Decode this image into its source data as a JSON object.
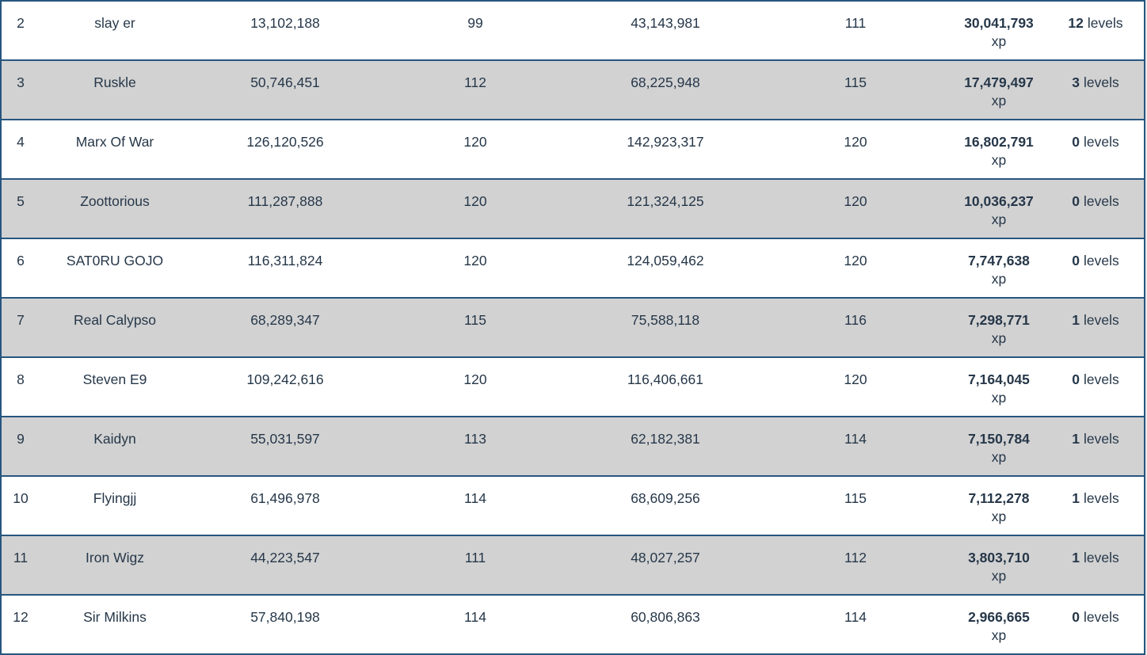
{
  "table": {
    "units": {
      "xp": "xp",
      "levels": "levels"
    },
    "rows": [
      {
        "rank": "2",
        "name": "slay er",
        "start_xp": "13,102,188",
        "start_level": "99",
        "end_xp": "43,143,981",
        "end_level": "111",
        "gained_xp": "30,041,793",
        "gained_levels": "12"
      },
      {
        "rank": "3",
        "name": "Ruskle",
        "start_xp": "50,746,451",
        "start_level": "112",
        "end_xp": "68,225,948",
        "end_level": "115",
        "gained_xp": "17,479,497",
        "gained_levels": "3"
      },
      {
        "rank": "4",
        "name": "Marx Of War",
        "start_xp": "126,120,526",
        "start_level": "120",
        "end_xp": "142,923,317",
        "end_level": "120",
        "gained_xp": "16,802,791",
        "gained_levels": "0"
      },
      {
        "rank": "5",
        "name": "Zoottorious",
        "start_xp": "111,287,888",
        "start_level": "120",
        "end_xp": "121,324,125",
        "end_level": "120",
        "gained_xp": "10,036,237",
        "gained_levels": "0"
      },
      {
        "rank": "6",
        "name": "SAT0RU GOJO",
        "start_xp": "116,311,824",
        "start_level": "120",
        "end_xp": "124,059,462",
        "end_level": "120",
        "gained_xp": "7,747,638",
        "gained_levels": "0"
      },
      {
        "rank": "7",
        "name": "Real Calypso",
        "start_xp": "68,289,347",
        "start_level": "115",
        "end_xp": "75,588,118",
        "end_level": "116",
        "gained_xp": "7,298,771",
        "gained_levels": "1"
      },
      {
        "rank": "8",
        "name": "Steven E9",
        "start_xp": "109,242,616",
        "start_level": "120",
        "end_xp": "116,406,661",
        "end_level": "120",
        "gained_xp": "7,164,045",
        "gained_levels": "0"
      },
      {
        "rank": "9",
        "name": "Kaidyn",
        "start_xp": "55,031,597",
        "start_level": "113",
        "end_xp": "62,182,381",
        "end_level": "114",
        "gained_xp": "7,150,784",
        "gained_levels": "1"
      },
      {
        "rank": "10",
        "name": "Flyingjj",
        "start_xp": "61,496,978",
        "start_level": "114",
        "end_xp": "68,609,256",
        "end_level": "115",
        "gained_xp": "7,112,278",
        "gained_levels": "1"
      },
      {
        "rank": "11",
        "name": "Iron Wigz",
        "start_xp": "44,223,547",
        "start_level": "111",
        "end_xp": "48,027,257",
        "end_level": "112",
        "gained_xp": "3,803,710",
        "gained_levels": "1"
      },
      {
        "rank": "12",
        "name": "Sir Milkins",
        "start_xp": "57,840,198",
        "start_level": "114",
        "end_xp": "60,806,863",
        "end_level": "114",
        "gained_xp": "2,966,665",
        "gained_levels": "0"
      }
    ]
  },
  "colors": {
    "border": "#27567f",
    "row_alt": "#d2d2d2",
    "text": "#263749"
  }
}
